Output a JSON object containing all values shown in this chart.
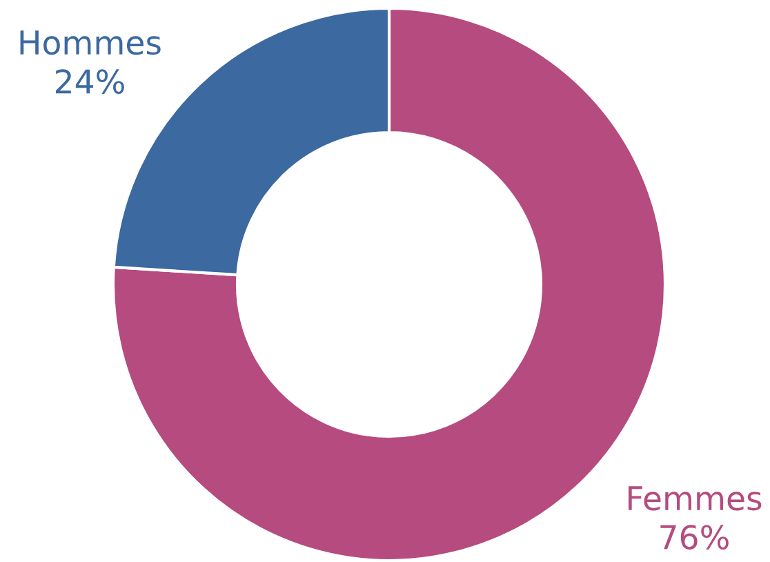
{
  "chart_data": {
    "type": "donut",
    "categories": [
      "Hommes",
      "Femmes"
    ],
    "values": [
      24,
      76
    ],
    "value_labels": [
      "24%",
      "76%"
    ],
    "colors": [
      "#3b69a0",
      "#b54b7e"
    ],
    "legend": false
  }
}
